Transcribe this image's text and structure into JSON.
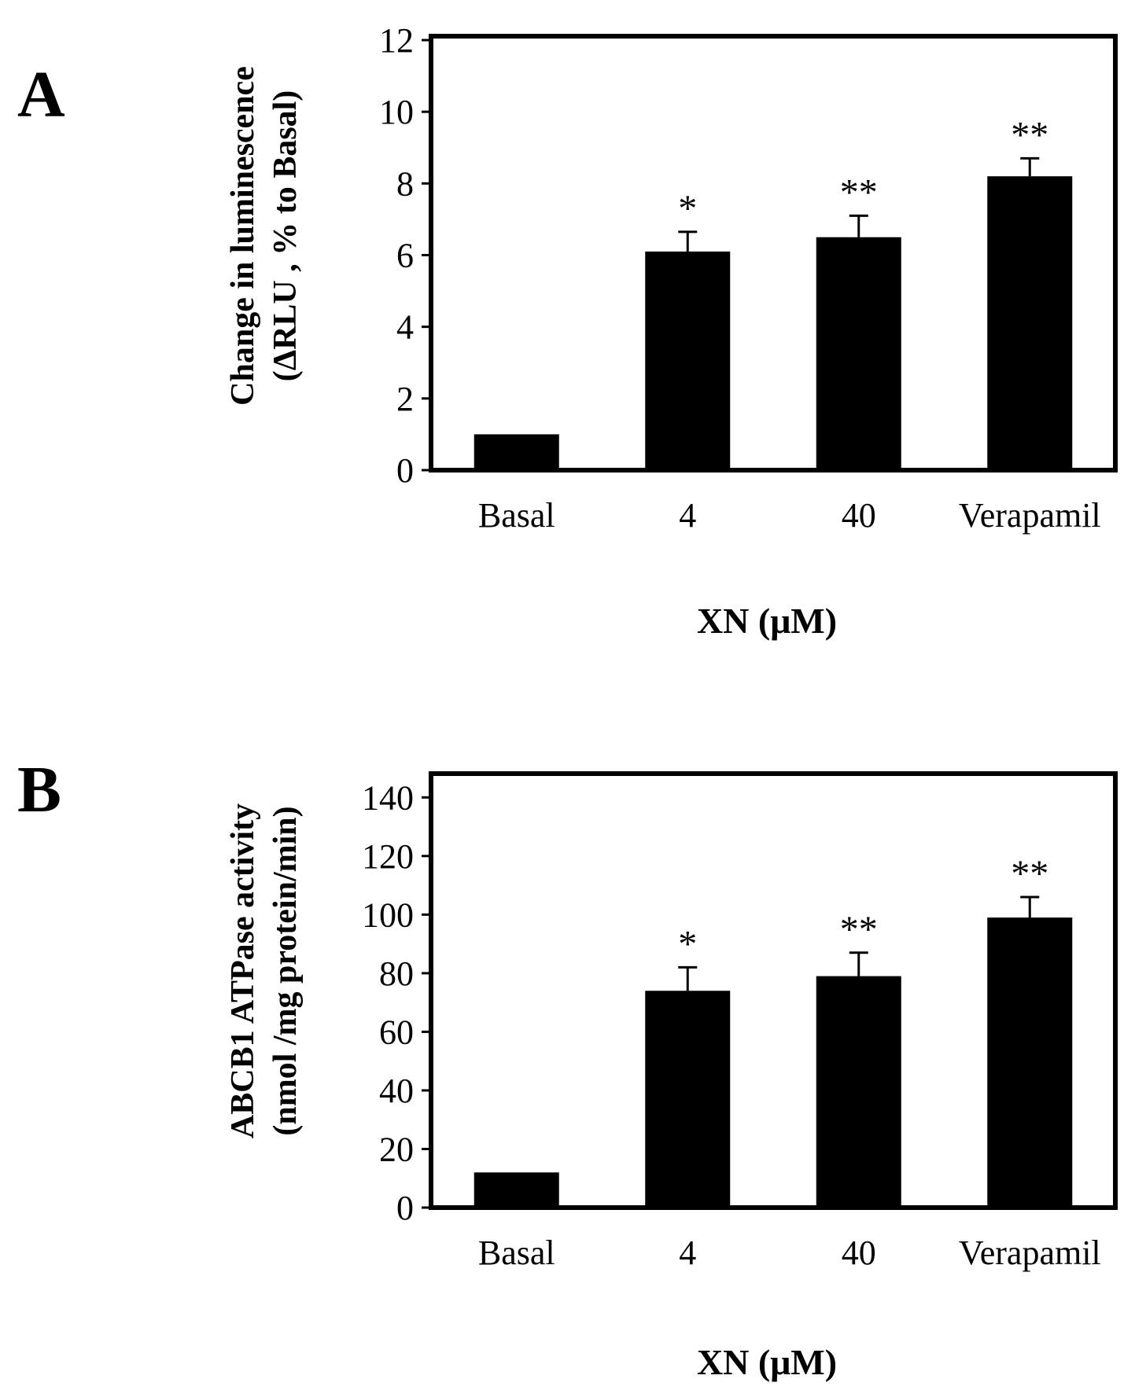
{
  "chart_data": [
    {
      "panel": "A",
      "type": "bar",
      "categories": [
        "Basal",
        "4",
        "40",
        "Verapamil"
      ],
      "values": [
        1.0,
        6.1,
        6.5,
        8.2
      ],
      "errors": [
        0.0,
        0.55,
        0.6,
        0.5
      ],
      "significance": [
        "",
        "*",
        "**",
        "**"
      ],
      "ylim": [
        0,
        12
      ],
      "yticks": [
        0,
        2,
        4,
        6,
        8,
        10,
        12
      ],
      "ylabel_line1": "Change in luminescence",
      "ylabel_line2": "(ΔRLU , % to Basal)",
      "xlabel": "XN (μM)",
      "bar_color": "#000000"
    },
    {
      "panel": "B",
      "type": "bar",
      "categories": [
        "Basal",
        "4",
        "40",
        "Verapamil"
      ],
      "values": [
        12,
        74,
        79,
        99
      ],
      "errors": [
        0,
        8,
        8,
        7
      ],
      "significance": [
        "",
        "*",
        "**",
        "**"
      ],
      "ylim": [
        0,
        150
      ],
      "yticks": [
        0,
        20,
        40,
        60,
        80,
        100,
        120,
        140
      ],
      "ylabel_line1": "ABCB1 ATPase activity",
      "ylabel_line2": "(nmol /mg protein/min)",
      "xlabel": "XN (μM)",
      "bar_color": "#000000"
    }
  ]
}
